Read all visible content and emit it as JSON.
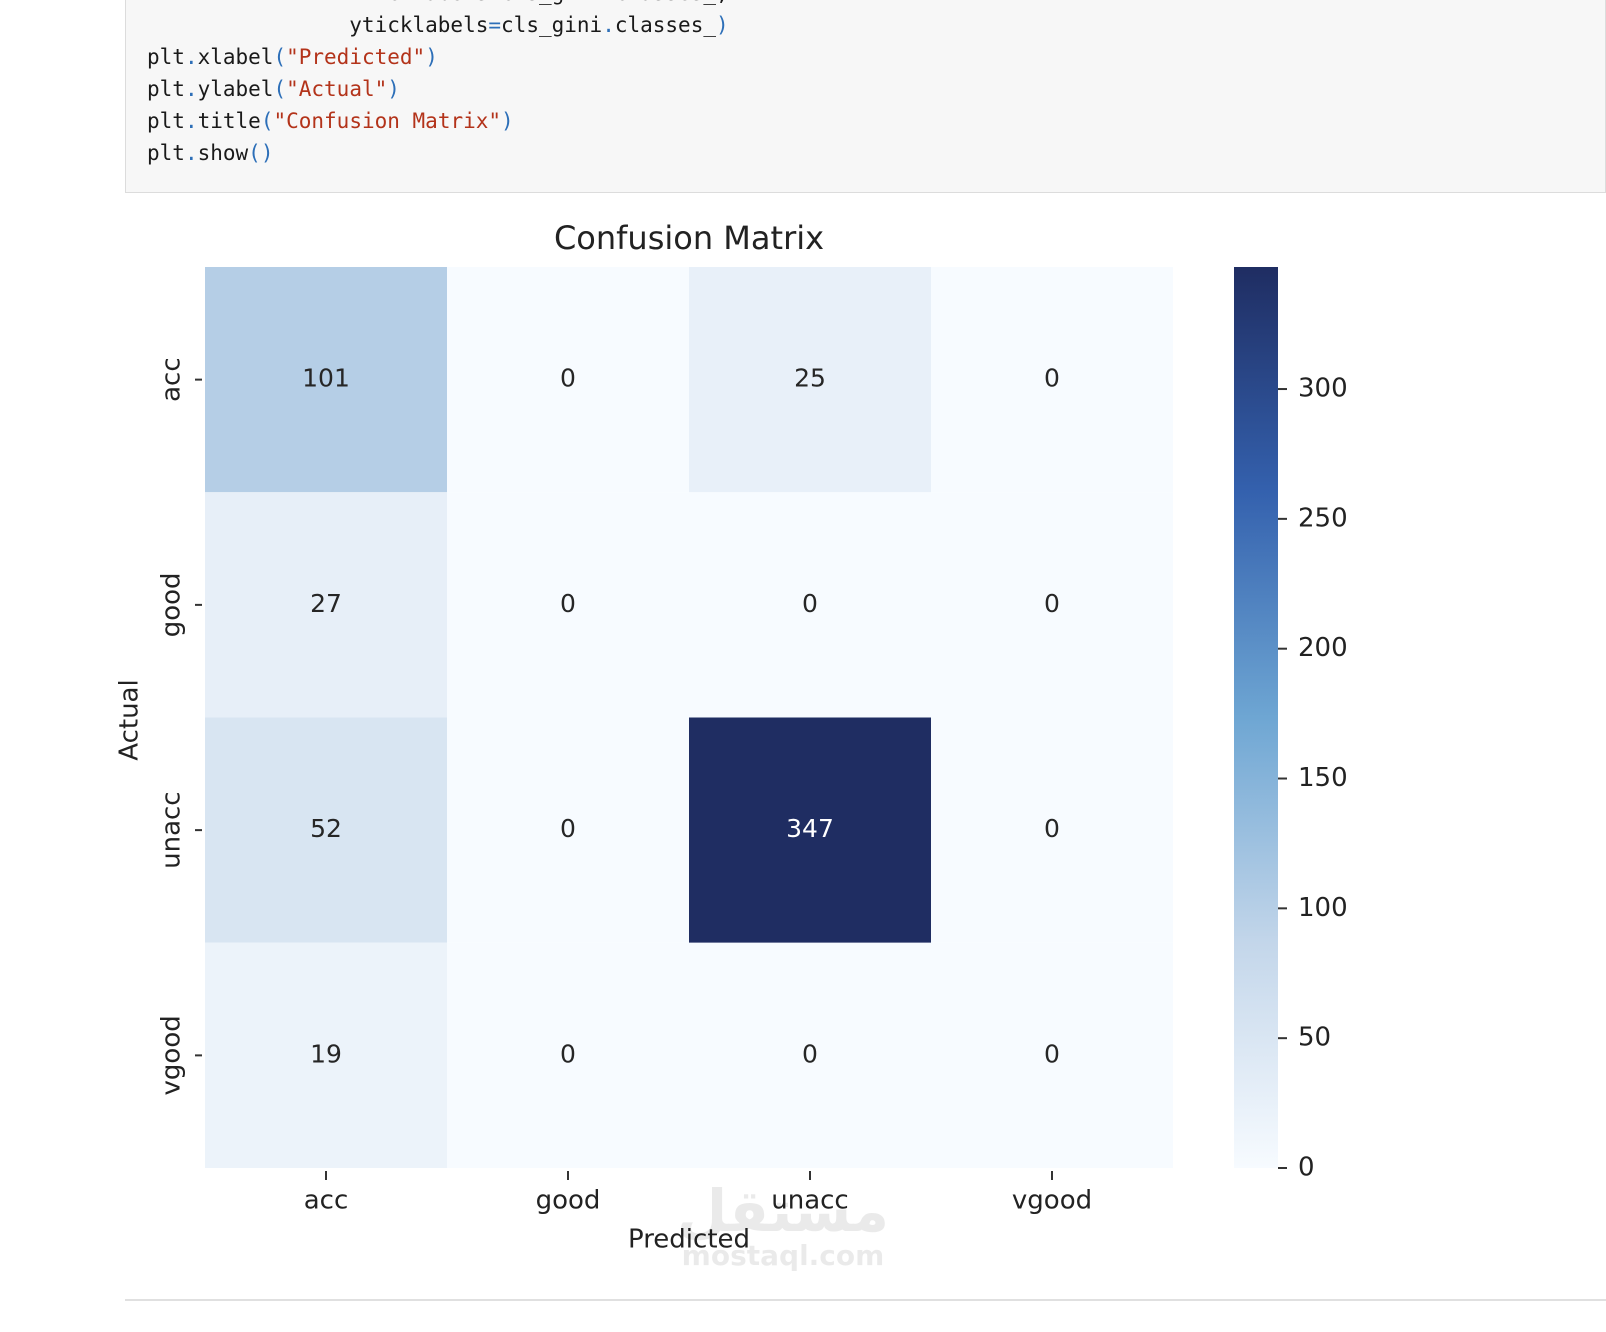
{
  "code": {
    "lines": [
      "                xticklabels=cls_gini.classes_,",
      "                yticklabels=cls_gini.classes_)",
      "plt.xlabel(\"Predicted\")",
      "plt.ylabel(\"Actual\")",
      "plt.title(\"Confusion Matrix\")",
      "plt.show()"
    ]
  },
  "chart_data": {
    "type": "heatmap",
    "title": "Confusion Matrix",
    "xlabel": "Predicted",
    "ylabel": "Actual",
    "x": [
      "acc",
      "good",
      "unacc",
      "vgood"
    ],
    "y": [
      "acc",
      "good",
      "unacc",
      "vgood"
    ],
    "values": [
      [
        101,
        0,
        25,
        0
      ],
      [
        27,
        0,
        0,
        0
      ],
      [
        52,
        0,
        347,
        0
      ],
      [
        19,
        0,
        0,
        0
      ]
    ],
    "clim": [
      0,
      347
    ],
    "cticks": [
      0,
      50,
      100,
      150,
      200,
      250,
      300
    ],
    "colormap": [
      "#f7fbff",
      "#c3d6ea",
      "#6ea6d3",
      "#3461ae",
      "#1f2d62"
    ]
  },
  "watermark": {
    "arabic": "مستقل",
    "latin": "mostaql.com"
  }
}
